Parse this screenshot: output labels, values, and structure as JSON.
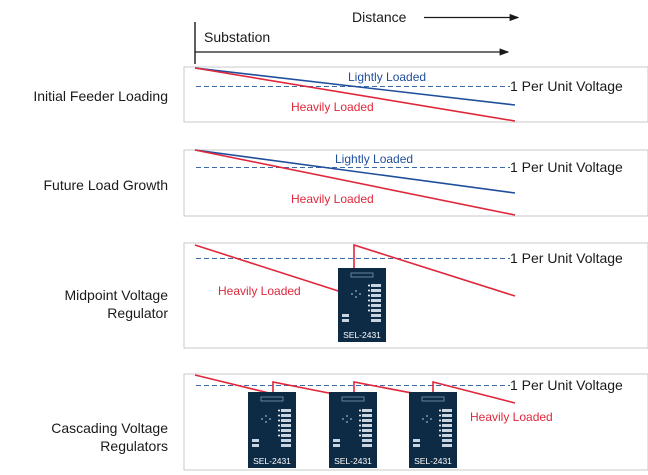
{
  "header": {
    "distance_label": "Distance",
    "substation_label": "Substation"
  },
  "colors": {
    "lightly_loaded": "#1f4e9c",
    "heavily_loaded": "#e0283c",
    "reference_dashed": "#3a6aa8",
    "panel_border": "#c8c8c8",
    "regulator_body": "#0d2b45",
    "text": "#1a1a1a"
  },
  "panels": [
    {
      "title": "Initial Feeder Loading",
      "reference_label": "1 Per Unit Voltage",
      "lightly_label": "Lightly Loaded",
      "heavily_label": "Heavily Loaded"
    },
    {
      "title": "Future Load Growth",
      "reference_label": "1 Per Unit Voltage",
      "lightly_label": "Lightly Loaded",
      "heavily_label": "Heavily Loaded"
    },
    {
      "title_lines": [
        "Midpoint Voltage",
        "Regulator"
      ],
      "reference_label": "1 Per Unit Voltage",
      "heavily_label": "Heavily Loaded",
      "regulators": [
        "SEL-2431"
      ]
    },
    {
      "title_lines": [
        "Cascading Voltage",
        "Regulators"
      ],
      "reference_label": "1 Per Unit Voltage",
      "heavily_label": "Heavily Loaded",
      "regulators": [
        "SEL-2431",
        "SEL-2431",
        "SEL-2431"
      ]
    }
  ],
  "icons": {
    "regulator": "voltage-regulator-device-icon"
  }
}
